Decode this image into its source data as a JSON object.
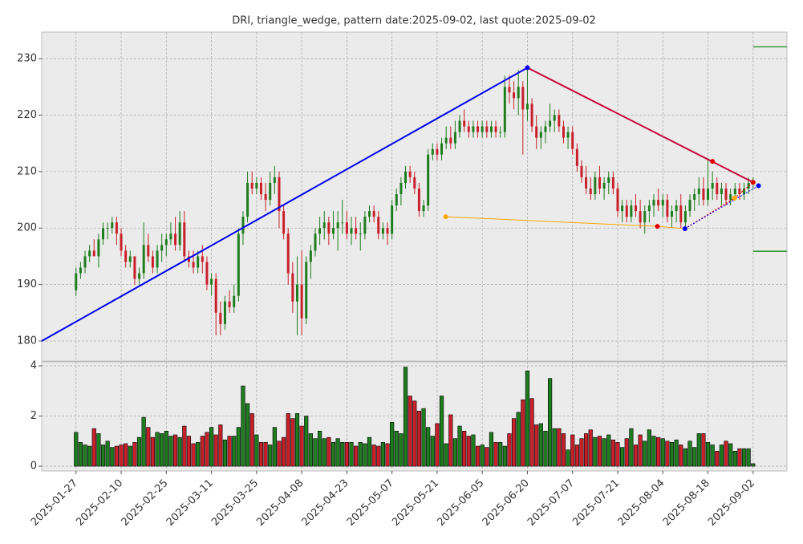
{
  "chart_data": {
    "type": "candlestick",
    "title": "DRI, triangle_wedge, pattern date:2025-09-02, last quote:2025-09-02",
    "up_color": "#1e7d1e",
    "down_color": "#c8202a",
    "grid": true,
    "xlim": [
      -7.6,
      157.5
    ],
    "xticks": [
      {
        "value": 0,
        "label": "2025-01-27"
      },
      {
        "value": 10,
        "label": "2025-02-10"
      },
      {
        "value": 20,
        "label": "2025-02-25"
      },
      {
        "value": 30,
        "label": "2025-03-11"
      },
      {
        "value": 40,
        "label": "2025-03-25"
      },
      {
        "value": 50,
        "label": "2025-04-08"
      },
      {
        "value": 60,
        "label": "2025-04-23"
      },
      {
        "value": 70,
        "label": "2025-05-07"
      },
      {
        "value": 80,
        "label": "2025-05-21"
      },
      {
        "value": 90,
        "label": "2025-06-05"
      },
      {
        "value": 100,
        "label": "2025-06-20"
      },
      {
        "value": 110,
        "label": "2025-07-07"
      },
      {
        "value": 120,
        "label": "2025-07-21"
      },
      {
        "value": 130,
        "label": "2025-08-04"
      },
      {
        "value": 140,
        "label": "2025-08-18"
      },
      {
        "value": 150,
        "label": "2025-09-02"
      }
    ],
    "ylim": [
      176.45,
      234.7
    ],
    "yticks": [
      180,
      190,
      200,
      210,
      220,
      230
    ],
    "volume_ylim": [
      -0.19,
      4.16
    ],
    "volume_yticks": [
      0,
      2,
      4
    ],
    "ohlc": [
      [
        189,
        193,
        188,
        192
      ],
      [
        192,
        194,
        191,
        193
      ],
      [
        193,
        196,
        192,
        195
      ],
      [
        195,
        197,
        194,
        196
      ],
      [
        196,
        198,
        195,
        195
      ],
      [
        195,
        199,
        193,
        198
      ],
      [
        198,
        201,
        197,
        200
      ],
      [
        200,
        201,
        198,
        200
      ],
      [
        200,
        202,
        199,
        201
      ],
      [
        201,
        202,
        197,
        199
      ],
      [
        199,
        200,
        195,
        196
      ],
      [
        196,
        197,
        193,
        194
      ],
      [
        194,
        196,
        193,
        195
      ],
      [
        195,
        195,
        190,
        191
      ],
      [
        191,
        193,
        190,
        192
      ],
      [
        192,
        201,
        191,
        197
      ],
      [
        197,
        199,
        194,
        195
      ],
      [
        195,
        196,
        192,
        193
      ],
      [
        193,
        197,
        192,
        196
      ],
      [
        196,
        199,
        194,
        197
      ],
      [
        197,
        199,
        195,
        198
      ],
      [
        198,
        201,
        197,
        199
      ],
      [
        199,
        202,
        196,
        197
      ],
      [
        197,
        203,
        196,
        201
      ],
      [
        201,
        203,
        194,
        195
      ],
      [
        195,
        196,
        193,
        194
      ],
      [
        194,
        196,
        192,
        193
      ],
      [
        193,
        196,
        192,
        195
      ],
      [
        195,
        197,
        192,
        194
      ],
      [
        194,
        195,
        189,
        190
      ],
      [
        190,
        192,
        188,
        191
      ],
      [
        191,
        192,
        181,
        185
      ],
      [
        185,
        187,
        181,
        183
      ],
      [
        183,
        188,
        182,
        187
      ],
      [
        187,
        189,
        185,
        186
      ],
      [
        186,
        190,
        185,
        188
      ],
      [
        188,
        200,
        187,
        199
      ],
      [
        199,
        203,
        197,
        202
      ],
      [
        202,
        210,
        201,
        208
      ],
      [
        208,
        210,
        206,
        207
      ],
      [
        207,
        209,
        206,
        208
      ],
      [
        208,
        209,
        205,
        206
      ],
      [
        206,
        208,
        203,
        205
      ],
      [
        205,
        210,
        204,
        208
      ],
      [
        208,
        211,
        206,
        209
      ],
      [
        209,
        210,
        200,
        203
      ],
      [
        203,
        204,
        198,
        199
      ],
      [
        199,
        200,
        190,
        192
      ],
      [
        192,
        194,
        185,
        187
      ],
      [
        187,
        195,
        181,
        190
      ],
      [
        190,
        196,
        181,
        184
      ],
      [
        184,
        195,
        183,
        194
      ],
      [
        194,
        197,
        191,
        196
      ],
      [
        196,
        200,
        195,
        199
      ],
      [
        199,
        202,
        197,
        200
      ],
      [
        200,
        203,
        198,
        201
      ],
      [
        201,
        202,
        197,
        199
      ],
      [
        199,
        203,
        198,
        200
      ],
      [
        200,
        203,
        196,
        201
      ],
      [
        201,
        205,
        199,
        201
      ],
      [
        201,
        203,
        198,
        199
      ],
      [
        199,
        202,
        197,
        200
      ],
      [
        200,
        202,
        198,
        199
      ],
      [
        199,
        201,
        196,
        199
      ],
      [
        199,
        203,
        198,
        202
      ],
      [
        202,
        204,
        201,
        203
      ],
      [
        203,
        204,
        201,
        202
      ],
      [
        202,
        203,
        198,
        199
      ],
      [
        199,
        201,
        198,
        200
      ],
      [
        200,
        201,
        197,
        199
      ],
      [
        199,
        205,
        198,
        204
      ],
      [
        204,
        207,
        203,
        206
      ],
      [
        206,
        209,
        204,
        208
      ],
      [
        208,
        211,
        207,
        210
      ],
      [
        210,
        211,
        208,
        209
      ],
      [
        209,
        210,
        206,
        207
      ],
      [
        207,
        208,
        202,
        203
      ],
      [
        203,
        205,
        202,
        204
      ],
      [
        204,
        214,
        203,
        213
      ],
      [
        213,
        215,
        212,
        214
      ],
      [
        214,
        215,
        212,
        213
      ],
      [
        213,
        216,
        212,
        215
      ],
      [
        215,
        218,
        214,
        216
      ],
      [
        216,
        218,
        214,
        215
      ],
      [
        215,
        219,
        214,
        217
      ],
      [
        217,
        220,
        216,
        219
      ],
      [
        219,
        221,
        217,
        218
      ],
      [
        218,
        219,
        216,
        217
      ],
      [
        217,
        219,
        216,
        218
      ],
      [
        218,
        219,
        216,
        217
      ],
      [
        217,
        219,
        216,
        218
      ],
      [
        218,
        219,
        216,
        217
      ],
      [
        217,
        219,
        216,
        218
      ],
      [
        218,
        219,
        216,
        217
      ],
      [
        217,
        218,
        216,
        217
      ],
      [
        217,
        227,
        216,
        225
      ],
      [
        225,
        227,
        222,
        224
      ],
      [
        224,
        226,
        221,
        223
      ],
      [
        223,
        228,
        220,
        225
      ],
      [
        225,
        226,
        213,
        221
      ],
      [
        221,
        228,
        219,
        222
      ],
      [
        222,
        223,
        217,
        218
      ],
      [
        218,
        220,
        214,
        216
      ],
      [
        216,
        218,
        214,
        217
      ],
      [
        217,
        219,
        215,
        218
      ],
      [
        218,
        222,
        217,
        219
      ],
      [
        219,
        221,
        217,
        220
      ],
      [
        220,
        221,
        217,
        218
      ],
      [
        218,
        219,
        215,
        216
      ],
      [
        216,
        218,
        214,
        217
      ],
      [
        217,
        218,
        213,
        214
      ],
      [
        214,
        215,
        210,
        211
      ],
      [
        211,
        212,
        208,
        209
      ],
      [
        209,
        211,
        206,
        207
      ],
      [
        207,
        209,
        205,
        206
      ],
      [
        206,
        210,
        205,
        209
      ],
      [
        209,
        211,
        206,
        207
      ],
      [
        207,
        209,
        205,
        208
      ],
      [
        208,
        210,
        206,
        209
      ],
      [
        209,
        210,
        206,
        207
      ],
      [
        207,
        208,
        202,
        203
      ],
      [
        203,
        205,
        201,
        204
      ],
      [
        204,
        205,
        201,
        202
      ],
      [
        202,
        205,
        201,
        204
      ],
      [
        204,
        206,
        202,
        203
      ],
      [
        203,
        205,
        200,
        201
      ],
      [
        201,
        204,
        199,
        203
      ],
      [
        203,
        205,
        201,
        204
      ],
      [
        204,
        206,
        202,
        205
      ],
      [
        205,
        207,
        203,
        204
      ],
      [
        204,
        206,
        202,
        205
      ],
      [
        205,
        206,
        201,
        202
      ],
      [
        202,
        204,
        200,
        203
      ],
      [
        203,
        205,
        201,
        204
      ],
      [
        204,
        206,
        200,
        201
      ],
      [
        201,
        204,
        200,
        203
      ],
      [
        203,
        206,
        202,
        205
      ],
      [
        205,
        207,
        203,
        206
      ],
      [
        206,
        209,
        204,
        207
      ],
      [
        207,
        209,
        204,
        205
      ],
      [
        205,
        212,
        204,
        207
      ],
      [
        207,
        210,
        205,
        208
      ],
      [
        208,
        209,
        205,
        206
      ],
      [
        206,
        208,
        204,
        207
      ],
      [
        207,
        208,
        204,
        205
      ],
      [
        205,
        207,
        204,
        206
      ],
      [
        206,
        208,
        205,
        207
      ],
      [
        207,
        208,
        205,
        206
      ],
      [
        206,
        208,
        205,
        207
      ],
      [
        207,
        209,
        206,
        208
      ],
      [
        208,
        209,
        207,
        208
      ]
    ],
    "volume": [
      1.35,
      0.95,
      0.85,
      0.8,
      1.5,
      1.3,
      0.85,
      1.0,
      0.75,
      0.8,
      0.85,
      0.9,
      0.8,
      0.95,
      1.15,
      1.95,
      1.55,
      1.15,
      1.35,
      1.3,
      1.4,
      1.2,
      1.25,
      1.15,
      1.6,
      1.2,
      0.9,
      0.95,
      1.2,
      1.35,
      1.55,
      1.25,
      1.65,
      1.05,
      1.2,
      1.2,
      1.55,
      3.2,
      2.5,
      2.1,
      1.25,
      0.95,
      0.95,
      0.85,
      1.55,
      1.0,
      1.15,
      2.1,
      1.9,
      2.1,
      1.6,
      2.0,
      1.3,
      1.1,
      1.4,
      1.1,
      1.15,
      0.95,
      1.1,
      0.95,
      0.95,
      0.95,
      0.8,
      0.95,
      0.9,
      1.15,
      0.85,
      0.8,
      0.95,
      0.9,
      1.75,
      1.4,
      1.3,
      3.95,
      2.8,
      2.6,
      2.2,
      2.3,
      1.55,
      1.2,
      1.7,
      2.8,
      0.9,
      2.05,
      1.1,
      1.6,
      1.4,
      1.2,
      1.25,
      0.8,
      0.85,
      0.75,
      1.35,
      0.95,
      0.95,
      0.8,
      1.3,
      1.9,
      2.15,
      2.65,
      3.8,
      2.7,
      1.65,
      1.7,
      1.4,
      3.5,
      1.5,
      1.5,
      1.3,
      0.65,
      1.25,
      0.85,
      1.1,
      1.3,
      1.45,
      1.15,
      1.2,
      1.1,
      1.25,
      1.05,
      0.95,
      0.75,
      1.1,
      1.5,
      0.85,
      1.25,
      1.0,
      1.45,
      1.2,
      1.15,
      1.1,
      1.0,
      0.95,
      1.05,
      0.85,
      0.7,
      1.0,
      0.75,
      1.3,
      1.3,
      0.95,
      0.85,
      0.6,
      0.85,
      1.0,
      0.9,
      0.6,
      0.7,
      0.7,
      0.7,
      0.1
    ],
    "lines": [
      {
        "color": "#0000ee",
        "width": 2,
        "dashed": false,
        "x": [
          -7.6,
          100
        ],
        "y": [
          180,
          228.4
        ]
      },
      {
        "color": "#c8003a",
        "width": 2,
        "dashed": false,
        "x": [
          100,
          150
        ],
        "y": [
          228.4,
          208.1
        ]
      },
      {
        "color": "#ffa500",
        "width": 1,
        "dashed": false,
        "x": [
          81.9,
          128.8,
          134.9
        ],
        "y": [
          202.0,
          200.3,
          199.9
        ]
      },
      {
        "color": "#e00000",
        "width": 1.2,
        "dashed": true,
        "x": [
          134.9,
          145.9,
          150
        ],
        "y": [
          199.9,
          205.3,
          208.1
        ]
      },
      {
        "color": "#0000ee",
        "width": 1,
        "dashed": true,
        "x": [
          134.9,
          151.2
        ],
        "y": [
          199.9,
          207.5
        ]
      },
      {
        "color": "#008000",
        "width": 1.2,
        "dashed": false,
        "x": [
          150,
          157.5
        ],
        "y": [
          232.1,
          232.1
        ]
      },
      {
        "color": "#008000",
        "width": 1.2,
        "dashed": false,
        "x": [
          150,
          157.5
        ],
        "y": [
          195.9,
          195.9
        ]
      }
    ],
    "points": [
      {
        "color": "#0000ee",
        "x": 100,
        "y": 228.4
      },
      {
        "color": "#0000ee",
        "x": 134.9,
        "y": 199.9
      },
      {
        "color": "#0000ee",
        "x": 151.2,
        "y": 207.5
      },
      {
        "color": "#e00000",
        "x": 141,
        "y": 211.8
      },
      {
        "color": "#e00000",
        "x": 150,
        "y": 208.1
      },
      {
        "color": "#e00000",
        "x": 128.8,
        "y": 200.3
      },
      {
        "color": "#ffa500",
        "x": 81.9,
        "y": 202.0
      },
      {
        "color": "#ffa500",
        "x": 145.9,
        "y": 205.3
      }
    ]
  }
}
